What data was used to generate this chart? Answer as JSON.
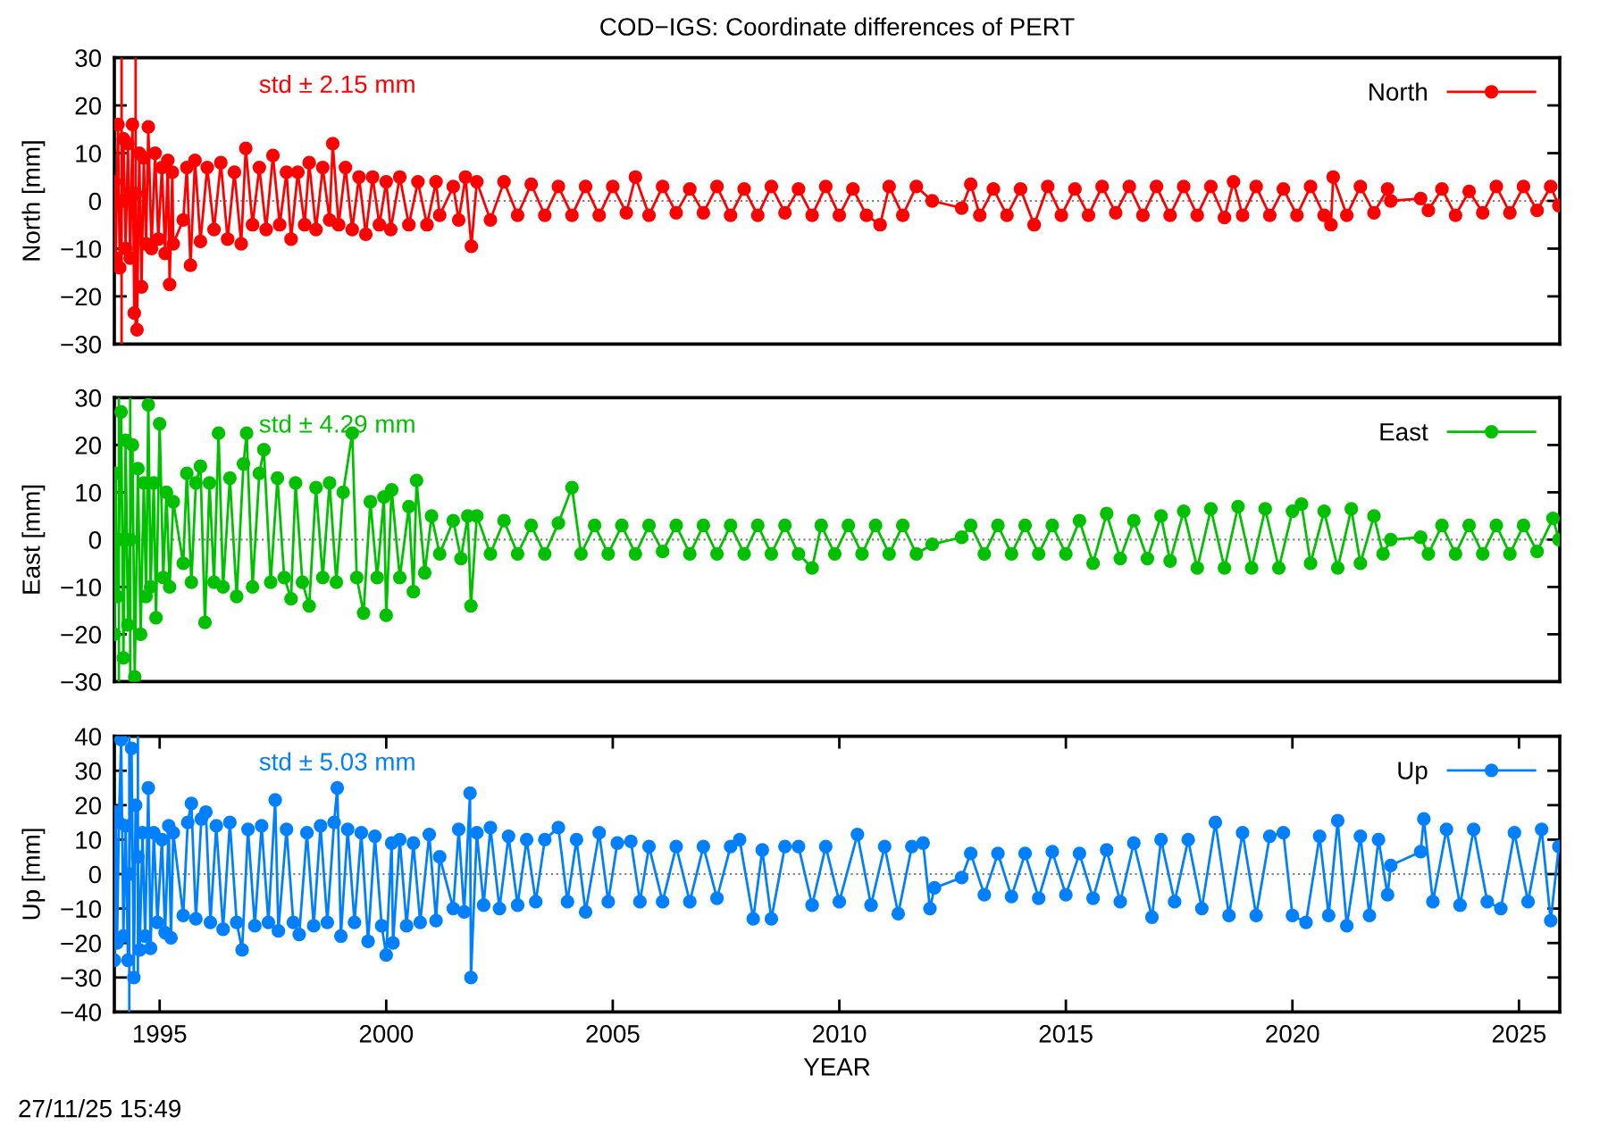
{
  "chart_data": [
    {
      "type": "line",
      "title": "COD−IGS: Coordinate differences of PERT",
      "ylabel": "North [mm]",
      "annotations": [
        "std ± 2.15 mm"
      ],
      "xlim": [
        1994.0,
        2025.9
      ],
      "ylim": [
        -30,
        30
      ],
      "yticks": [
        {
          "value": -30,
          "label": "−30"
        },
        {
          "value": -20,
          "label": "−20"
        },
        {
          "value": -10,
          "label": "−10"
        },
        0,
        10,
        20,
        30
      ],
      "tick_labels": "y",
      "legend": "top right",
      "marker": "circle",
      "line_style": "solid",
      "ref_lines": [
        {
          "axis": "y",
          "value": 0,
          "color": "#808080",
          "line_style": "dotted"
        }
      ],
      "x": [
        1994.0,
        1994.03,
        1994.08,
        1994.12,
        1994.16,
        1994.2,
        1994.25,
        1994.3,
        1994.35,
        1994.4,
        1994.44,
        1994.47,
        1994.5,
        1994.55,
        1994.6,
        1994.65,
        1994.7,
        1994.75,
        1994.82,
        1994.9,
        1994.97,
        1995.05,
        1995.12,
        1995.18,
        1995.22,
        1995.28,
        1995.3,
        1995.52,
        1995.6,
        1995.68,
        1995.78,
        1995.9,
        1996.05,
        1996.2,
        1996.35,
        1996.5,
        1996.65,
        1996.8,
        1996.9,
        1997.05,
        1997.2,
        1997.35,
        1997.5,
        1997.65,
        1997.8,
        1997.9,
        1998.05,
        1998.2,
        1998.3,
        1998.45,
        1998.6,
        1998.75,
        1998.82,
        1998.95,
        1999.1,
        1999.25,
        1999.4,
        1999.55,
        1999.7,
        1999.85,
        2000.0,
        2000.1,
        2000.3,
        2000.5,
        2000.7,
        2000.9,
        2001.1,
        2001.18,
        2001.48,
        2001.6,
        2001.75,
        2001.88,
        2002.0,
        2002.3,
        2002.6,
        2002.9,
        2003.2,
        2003.5,
        2003.8,
        2004.1,
        2004.4,
        2004.7,
        2005.0,
        2005.3,
        2005.5,
        2005.8,
        2006.1,
        2006.4,
        2006.7,
        2007.0,
        2007.3,
        2007.6,
        2007.9,
        2008.2,
        2008.5,
        2008.8,
        2009.1,
        2009.4,
        2009.7,
        2010.0,
        2010.3,
        2010.6,
        2010.9,
        2011.1,
        2011.4,
        2011.7,
        2012.05,
        2012.7,
        2012.9,
        2013.1,
        2013.4,
        2013.7,
        2014.0,
        2014.3,
        2014.6,
        2014.9,
        2015.2,
        2015.5,
        2015.8,
        2016.1,
        2016.4,
        2016.7,
        2017.0,
        2017.3,
        2017.6,
        2017.9,
        2018.2,
        2018.5,
        2018.7,
        2018.9,
        2019.2,
        2019.5,
        2019.8,
        2020.1,
        2020.4,
        2020.7,
        2020.85,
        2020.9,
        2021.2,
        2021.5,
        2021.8,
        2022.1,
        2022.17,
        2022.83,
        2023.0,
        2023.3,
        2023.6,
        2023.9,
        2024.2,
        2024.5,
        2024.8,
        2025.1,
        2025.4,
        2025.7,
        2025.88
      ],
      "series": [
        {
          "name": "North",
          "color": "#ff0000",
          "values": [
            4,
            -12,
            16,
            -14,
            0,
            13,
            -10,
            12,
            -12,
            16,
            -23.5,
            1.5,
            -27,
            10,
            -18,
            9,
            -9,
            15.5,
            -10,
            10,
            -8,
            7,
            -11,
            8.5,
            -17.5,
            6,
            -9,
            -4,
            7,
            -13.5,
            8.5,
            -8.5,
            7,
            -6,
            8,
            -8,
            6,
            -9,
            11,
            -5,
            7,
            -6,
            9.5,
            -5,
            6,
            -8,
            6,
            -5,
            8,
            -6,
            7,
            -4,
            12,
            -5,
            7,
            -6,
            5,
            -7,
            5,
            -5,
            4,
            -6,
            5,
            -5,
            4,
            -5,
            4,
            -3,
            3,
            -4,
            5,
            -9.5,
            4,
            -4,
            4,
            -3,
            3.5,
            -3,
            3,
            -3,
            3,
            -3,
            3,
            -2.5,
            5,
            -3,
            3,
            -2.5,
            2.5,
            -2.5,
            3,
            -3,
            2.5,
            -3,
            3,
            -2.5,
            2.5,
            -3,
            3,
            -3,
            2.5,
            -3,
            -5,
            3,
            -3,
            3,
            0,
            -1.5,
            3.5,
            -3,
            2.5,
            -3,
            2.5,
            -5,
            3,
            -3,
            2.5,
            -3,
            3,
            -2.5,
            3,
            -3,
            3,
            -3,
            3,
            -3,
            3,
            -3.5,
            4,
            -3,
            3,
            -3,
            2.5,
            -3,
            3,
            -3,
            -5,
            5,
            -3,
            3,
            -2.5,
            2.5,
            0,
            0.5,
            -2,
            2.5,
            -3,
            2,
            -2.5,
            3,
            -2.5,
            3,
            -2,
            3,
            -1
          ],
          "errors": [
            null,
            null,
            null,
            null,
            30,
            null,
            null,
            null,
            null,
            null,
            null,
            28.5,
            null,
            null,
            null,
            null,
            null,
            null,
            null,
            null,
            null,
            null,
            null,
            null,
            null,
            null,
            null,
            null,
            null,
            null,
            null,
            null,
            null,
            null,
            null,
            null,
            null,
            null,
            null,
            null,
            null,
            null,
            null,
            null,
            null,
            null,
            null,
            null,
            null,
            null,
            null,
            null,
            null,
            null,
            null,
            null,
            null,
            null,
            null,
            null,
            null,
            null,
            null,
            null,
            null,
            null,
            null,
            null,
            null,
            null,
            null,
            null,
            null,
            null,
            null,
            null,
            null,
            null,
            null,
            null,
            null,
            null,
            null,
            null,
            null,
            null,
            null,
            null,
            null,
            null,
            null,
            null,
            null,
            null,
            null,
            null,
            null,
            null,
            null,
            null,
            null,
            null,
            null,
            null,
            null,
            null,
            null,
            null,
            null,
            null,
            null,
            null,
            null,
            null,
            null,
            null,
            null,
            null,
            null,
            null,
            null,
            null,
            null,
            null,
            null,
            null,
            null,
            null,
            null,
            null,
            null,
            null,
            null,
            null,
            null,
            null,
            null,
            null,
            null,
            null,
            null,
            null,
            null,
            null,
            null,
            null,
            null,
            null,
            null,
            null,
            null,
            null,
            null,
            null,
            null
          ]
        }
      ]
    },
    {
      "type": "line",
      "ylabel": "East [mm]",
      "annotations": [
        "std ± 4.29 mm"
      ],
      "xlim": [
        1994.0,
        2025.9
      ],
      "ylim": [
        -30,
        30
      ],
      "yticks": [
        {
          "value": -30,
          "label": "−30"
        },
        {
          "value": -20,
          "label": "−20"
        },
        {
          "value": -10,
          "label": "−10"
        },
        0,
        10,
        20,
        30
      ],
      "tick_labels": "y",
      "legend": "top right",
      "marker": "circle",
      "line_style": "solid",
      "ref_lines": [
        {
          "axis": "y",
          "value": 0,
          "color": "#808080",
          "line_style": "dotted"
        }
      ],
      "x": [
        1994.0,
        1994.03,
        1994.06,
        1994.1,
        1994.15,
        1994.2,
        1994.25,
        1994.3,
        1994.35,
        1994.4,
        1994.45,
        1994.52,
        1994.58,
        1994.65,
        1994.7,
        1994.75,
        1994.8,
        1994.87,
        1994.92,
        1995.0,
        1995.08,
        1995.15,
        1995.22,
        1995.3,
        1995.52,
        1995.6,
        1995.7,
        1995.8,
        1995.9,
        1996.0,
        1996.1,
        1996.2,
        1996.3,
        1996.4,
        1996.55,
        1996.7,
        1996.85,
        1996.92,
        1997.05,
        1997.2,
        1997.3,
        1997.45,
        1997.6,
        1997.75,
        1997.9,
        1998.0,
        1998.15,
        1998.3,
        1998.45,
        1998.6,
        1998.75,
        1998.9,
        1999.05,
        1999.25,
        1999.35,
        1999.5,
        1999.65,
        1999.8,
        1999.95,
        2000.0,
        2000.12,
        2000.3,
        2000.5,
        2000.6,
        2000.67,
        2000.85,
        2001.0,
        2001.18,
        2001.48,
        2001.65,
        2001.8,
        2001.87,
        2002.0,
        2002.3,
        2002.6,
        2002.9,
        2003.2,
        2003.5,
        2003.8,
        2004.1,
        2004.3,
        2004.6,
        2004.9,
        2005.2,
        2005.5,
        2005.8,
        2006.1,
        2006.4,
        2006.7,
        2007.0,
        2007.3,
        2007.6,
        2007.9,
        2008.2,
        2008.5,
        2008.8,
        2009.1,
        2009.4,
        2009.6,
        2009.9,
        2010.2,
        2010.5,
        2010.8,
        2011.1,
        2011.4,
        2011.7,
        2012.05,
        2012.7,
        2012.9,
        2013.2,
        2013.5,
        2013.8,
        2014.1,
        2014.4,
        2014.7,
        2015.0,
        2015.3,
        2015.6,
        2015.9,
        2016.2,
        2016.5,
        2016.8,
        2017.1,
        2017.3,
        2017.6,
        2017.9,
        2018.2,
        2018.5,
        2018.8,
        2019.1,
        2019.4,
        2019.7,
        2020.0,
        2020.2,
        2020.4,
        2020.7,
        2021.0,
        2021.3,
        2021.5,
        2021.8,
        2022.0,
        2022.17,
        2022.83,
        2023.0,
        2023.3,
        2023.6,
        2023.9,
        2024.2,
        2024.5,
        2024.8,
        2025.1,
        2025.4,
        2025.75,
        2025.88
      ],
      "series": [
        {
          "name": "East",
          "color": "#00c000",
          "values": [
            -20,
            14,
            -12,
            0,
            27,
            -25,
            21,
            -18,
            0,
            20,
            -29,
            15,
            -20,
            12,
            -12,
            28.5,
            -10,
            12,
            -16.5,
            24.5,
            -8,
            10,
            -10,
            8,
            -5,
            14,
            -9,
            12,
            15.5,
            -17.5,
            12,
            -9,
            22.5,
            -10,
            13,
            -12,
            16,
            22.5,
            -10,
            14,
            19,
            -9,
            13,
            -8,
            -12.5,
            12,
            -9,
            -14,
            11,
            -8,
            12,
            -9,
            10,
            22.5,
            -8,
            -15.5,
            8,
            -8,
            9,
            -16,
            10.5,
            -8,
            7,
            -11,
            12.5,
            -7,
            5,
            -3,
            4,
            -4,
            5,
            -14,
            5,
            -3,
            4,
            -3,
            3,
            -3,
            3.5,
            11,
            -3,
            3,
            -3,
            3,
            -3,
            3,
            -2.5,
            3,
            -3,
            3,
            -3,
            3,
            -3,
            3,
            -3,
            3,
            -3,
            -6,
            3,
            -3,
            3,
            -3,
            3,
            -3,
            3,
            -3,
            -1,
            0.5,
            3,
            -3,
            3,
            -3,
            3,
            -3,
            3,
            -3,
            4,
            -5,
            5.5,
            -4,
            4,
            -4,
            5,
            -4.5,
            6,
            -6,
            6.5,
            -6,
            7,
            -6,
            6.5,
            -6,
            6,
            7.5,
            -5,
            6,
            -6,
            6.5,
            -5,
            5,
            -3,
            0,
            0.5,
            -3,
            3,
            -3,
            3,
            -3,
            3,
            -3,
            3,
            -2.5,
            4.5,
            0
          ],
          "errors": [
            null,
            null,
            null,
            30,
            null,
            null,
            null,
            null,
            30,
            null,
            null,
            null,
            null,
            null,
            null,
            null,
            null,
            null,
            null,
            null,
            null,
            null,
            null,
            null,
            null,
            null,
            null,
            null,
            null,
            null,
            null,
            null,
            null,
            null,
            null,
            null,
            null,
            null,
            null,
            null,
            null,
            null,
            null,
            null,
            null,
            null,
            null,
            null,
            null,
            null,
            null,
            null,
            null,
            null,
            null,
            null,
            null,
            null,
            null,
            null,
            null,
            null,
            null,
            null,
            null,
            null,
            null,
            null,
            null,
            null,
            null,
            null,
            null,
            null,
            null,
            null,
            null,
            null,
            null,
            null,
            null,
            null,
            null,
            null,
            null,
            null,
            null,
            null,
            null,
            null,
            null,
            null,
            null,
            null,
            null,
            null,
            null,
            null,
            null,
            null,
            null,
            null,
            null,
            null,
            null,
            null,
            null,
            null,
            null,
            null,
            null,
            null,
            null,
            null,
            null,
            null,
            null,
            null,
            null,
            null,
            null,
            null,
            null,
            null,
            null,
            null,
            null,
            null,
            null,
            null,
            null,
            null,
            null,
            null,
            null,
            null,
            null,
            null,
            null,
            null,
            null,
            null,
            null,
            null,
            null,
            null,
            null,
            null,
            null,
            null,
            null,
            null,
            null,
            null
          ]
        }
      ]
    },
    {
      "type": "line",
      "xlabel": "YEAR",
      "ylabel": "Up [mm]",
      "annotations": [
        "std ± 5.03 mm",
        "27/11/25 15:49"
      ],
      "xlim": [
        1994.0,
        2025.9
      ],
      "xticks": [
        1995,
        2000,
        2005,
        2010,
        2015,
        2020,
        2025
      ],
      "ylim": [
        -40,
        40
      ],
      "yticks": [
        {
          "value": -40,
          "label": "−40"
        },
        {
          "value": -30,
          "label": "−30"
        },
        {
          "value": -20,
          "label": "−20"
        },
        {
          "value": -10,
          "label": "−10"
        },
        0,
        10,
        20,
        30,
        40
      ],
      "legend": "top right",
      "marker": "circle",
      "line_style": "solid",
      "ref_lines": [
        {
          "axis": "y",
          "value": 0,
          "color": "#808080",
          "line_style": "dotted"
        }
      ],
      "x": [
        1994.0,
        1994.03,
        1994.06,
        1994.1,
        1994.15,
        1994.2,
        1994.25,
        1994.3,
        1994.33,
        1994.38,
        1994.43,
        1994.47,
        1994.52,
        1994.56,
        1994.62,
        1994.68,
        1994.75,
        1994.8,
        1994.87,
        1994.95,
        1995.05,
        1995.12,
        1995.2,
        1995.25,
        1995.3,
        1995.52,
        1995.62,
        1995.7,
        1995.8,
        1995.92,
        1996.02,
        1996.12,
        1996.25,
        1996.4,
        1996.55,
        1996.7,
        1996.82,
        1996.95,
        1997.1,
        1997.25,
        1997.4,
        1997.55,
        1997.62,
        1997.8,
        1997.95,
        1998.08,
        1998.25,
        1998.4,
        1998.55,
        1998.7,
        1998.85,
        1998.92,
        1999.0,
        1999.15,
        1999.3,
        1999.45,
        1999.6,
        1999.75,
        1999.9,
        2000.0,
        2000.12,
        2000.15,
        2000.3,
        2000.45,
        2000.6,
        2000.75,
        2000.95,
        2001.1,
        2001.18,
        2001.48,
        2001.6,
        2001.72,
        2001.85,
        2001.87,
        2002.0,
        2002.15,
        2002.3,
        2002.5,
        2002.7,
        2002.9,
        2003.1,
        2003.3,
        2003.5,
        2003.8,
        2004.0,
        2004.2,
        2004.4,
        2004.7,
        2004.9,
        2005.1,
        2005.4,
        2005.6,
        2005.8,
        2006.1,
        2006.4,
        2006.7,
        2007.0,
        2007.3,
        2007.6,
        2007.8,
        2008.1,
        2008.3,
        2008.5,
        2008.8,
        2009.1,
        2009.4,
        2009.7,
        2010.0,
        2010.4,
        2010.7,
        2011.0,
        2011.3,
        2011.6,
        2011.85,
        2012.0,
        2012.1,
        2012.7,
        2012.9,
        2013.2,
        2013.5,
        2013.8,
        2014.1,
        2014.4,
        2014.7,
        2015.0,
        2015.3,
        2015.6,
        2015.9,
        2016.2,
        2016.5,
        2016.9,
        2017.1,
        2017.4,
        2017.7,
        2018.0,
        2018.3,
        2018.6,
        2018.9,
        2019.2,
        2019.5,
        2019.8,
        2020.0,
        2020.3,
        2020.6,
        2020.8,
        2021.0,
        2021.2,
        2021.5,
        2021.7,
        2021.9,
        2022.1,
        2022.17,
        2022.83,
        2022.9,
        2023.1,
        2023.4,
        2023.7,
        2024.0,
        2024.3,
        2024.6,
        2024.9,
        2025.2,
        2025.5,
        2025.7,
        2025.88
      ],
      "series": [
        {
          "name": "Up",
          "color": "#0080ff",
          "values": [
            -25,
            18,
            -20,
            15,
            39,
            -18,
            14,
            -25,
            0,
            36.5,
            -30,
            20,
            5,
            -22,
            12,
            -18,
            25,
            -21.5,
            12,
            -14,
            10,
            -17,
            14,
            -18.5,
            12,
            -12,
            15,
            20.5,
            -13,
            16,
            18,
            -14,
            14,
            -16,
            15,
            -14,
            -22,
            13,
            -15,
            14,
            -14,
            21.5,
            -16.5,
            13,
            -14,
            -17.5,
            12,
            -15,
            14,
            -14,
            15,
            25,
            -18,
            13,
            -14,
            12,
            -19.5,
            11,
            -15,
            -23.5,
            9,
            -20,
            10,
            -15,
            9,
            -14,
            11.5,
            -13.5,
            5,
            -10,
            13,
            -11,
            23.5,
            -30,
            12,
            -9,
            13.5,
            -10,
            11,
            -9,
            10,
            -8,
            10,
            13.5,
            -8,
            10,
            -11,
            12,
            -8,
            9,
            9.5,
            -8,
            8,
            -8,
            8,
            -8,
            8,
            -7,
            8,
            10,
            -13,
            7,
            -13,
            8,
            8,
            -9,
            8,
            -8,
            11.5,
            -9,
            8,
            -11.5,
            8,
            9,
            -10,
            -4,
            -1,
            6,
            -6,
            6,
            -6.5,
            6,
            -7,
            6.5,
            -6,
            6,
            -7,
            7,
            -8,
            9,
            -12.5,
            10,
            -8,
            10,
            -10,
            15,
            -12,
            12,
            -12,
            11,
            12,
            -12,
            -14,
            11,
            -12,
            15.5,
            -15,
            11,
            -12,
            10,
            -6,
            2.5,
            6.5,
            16,
            -8,
            13,
            -9,
            13,
            -8,
            -10,
            12,
            -8,
            13,
            -13.5,
            8
          ],
          "errors": [
            null,
            null,
            null,
            null,
            null,
            null,
            null,
            null,
            40,
            null,
            null,
            null,
            35,
            null,
            null,
            null,
            null,
            null,
            null,
            null,
            null,
            null,
            null,
            null,
            null,
            null,
            null,
            null,
            null,
            null,
            null,
            null,
            null,
            null,
            null,
            null,
            null,
            null,
            null,
            null,
            null,
            null,
            null,
            null,
            null,
            null,
            null,
            null,
            null,
            null,
            null,
            null,
            null,
            null,
            null,
            null,
            null,
            null,
            null,
            null,
            null,
            null,
            null,
            null,
            null,
            null,
            null,
            null,
            null,
            null,
            null,
            null,
            null,
            null,
            null,
            null,
            null,
            null,
            null,
            null,
            null,
            null,
            null,
            null,
            null,
            null,
            null,
            null,
            null,
            null,
            null,
            null,
            null,
            null,
            null,
            null,
            null,
            null,
            null,
            null,
            null,
            null,
            null,
            null,
            null,
            null,
            null,
            null,
            null,
            null,
            null,
            null,
            null,
            null,
            null,
            null,
            null,
            null,
            null,
            null,
            null,
            null,
            null,
            null,
            null,
            null,
            null,
            null,
            null,
            null,
            null,
            null,
            null,
            null,
            null,
            null,
            null,
            null,
            null,
            null,
            null,
            null,
            null,
            null,
            null,
            null,
            null,
            null,
            null,
            null,
            null,
            null,
            null,
            null,
            null,
            null,
            null,
            null,
            null,
            null,
            null,
            null,
            null,
            null,
            null
          ]
        }
      ]
    }
  ]
}
